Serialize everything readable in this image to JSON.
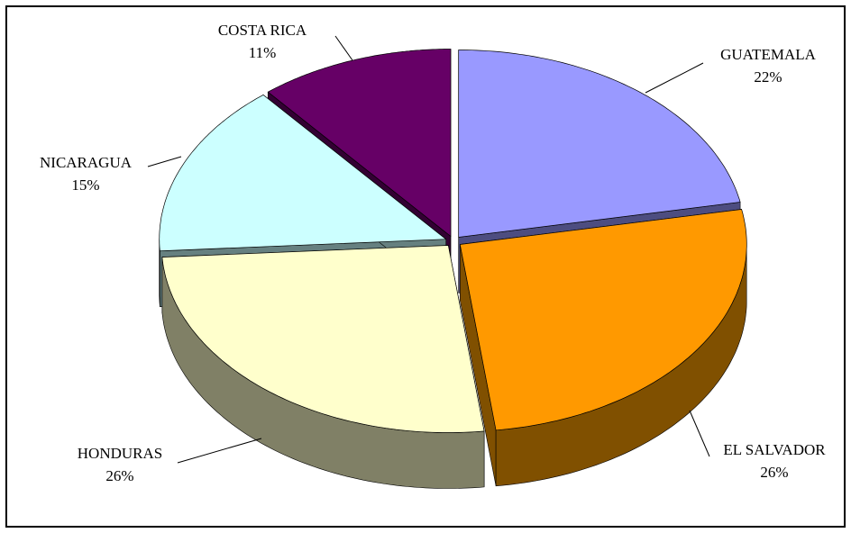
{
  "chart_data": {
    "type": "pie",
    "style": "3d-exploded",
    "title": "",
    "slices": [
      {
        "name": "GUATEMALA",
        "value": 22,
        "pct_label": "22%",
        "color": "#9999ff",
        "side_color": "#4d4d80"
      },
      {
        "name": "EL SALVADOR",
        "value": 26,
        "pct_label": "26%",
        "color": "#ff9900",
        "side_color": "#805000"
      },
      {
        "name": "HONDURAS",
        "value": 26,
        "pct_label": "26%",
        "color": "#ffffcc",
        "side_color": "#808066"
      },
      {
        "name": "NICARAGUA",
        "value": 15,
        "pct_label": "15%",
        "color": "#ccffff",
        "side_color": "#668080"
      },
      {
        "name": "COSTA RICA",
        "value": 11,
        "pct_label": "11%",
        "color": "#660066",
        "side_color": "#330033"
      }
    ]
  }
}
